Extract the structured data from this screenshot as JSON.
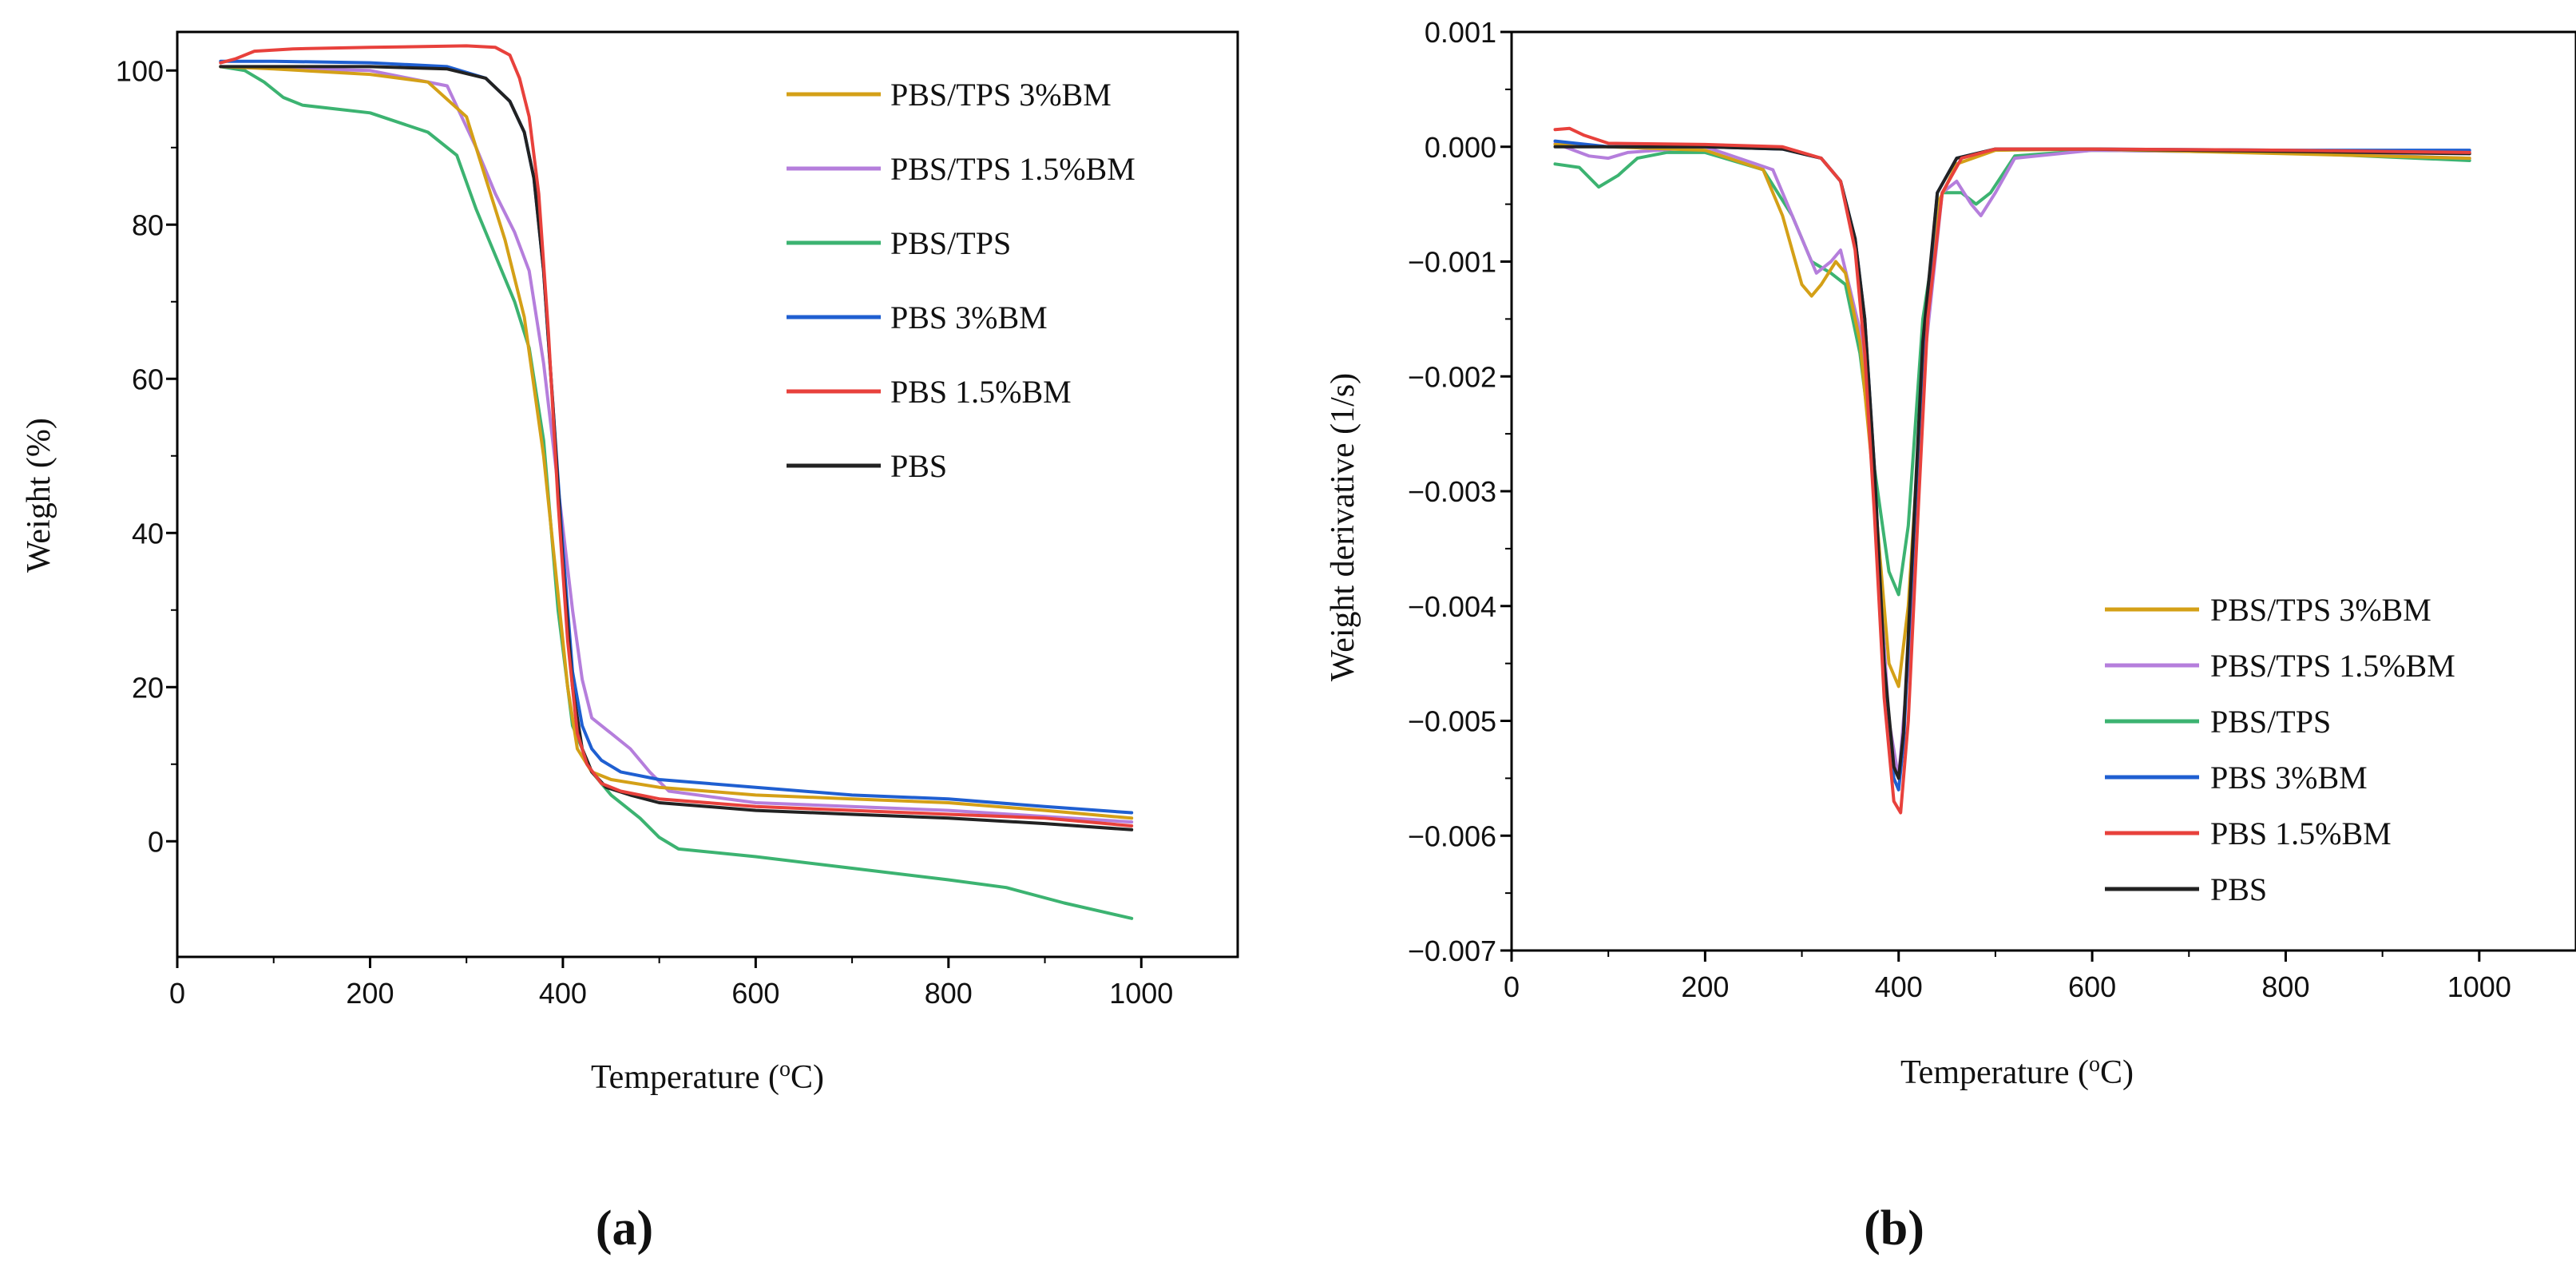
{
  "chart_data": [
    {
      "type": "line",
      "panel_label": "(a)",
      "xlabel": "Temperature (",
      "xlabel_sup": "o",
      "xlabel_tail": "C)",
      "ylabel": "Weight (%)",
      "xlim": [
        0,
        1100
      ],
      "ylim": [
        -15,
        105
      ],
      "xticks": [
        0,
        200,
        400,
        600,
        800,
        1000
      ],
      "yticks": [
        0,
        20,
        40,
        60,
        80,
        100
      ],
      "x_tick_labels": [
        "0",
        "200",
        "400",
        "600",
        "800",
        "1000"
      ],
      "y_tick_labels": [
        "0",
        "20",
        "40",
        "60",
        "80",
        "100"
      ],
      "legend_position": "top-right",
      "series": [
        {
          "name": "PBS/TPS 3%BM",
          "color": "#D4A017",
          "x": [
            45,
            100,
            200,
            260,
            300,
            320,
            340,
            360,
            380,
            395,
            405,
            415,
            430,
            450,
            500,
            600,
            700,
            800,
            900,
            990
          ],
          "y": [
            100.5,
            100.2,
            99.5,
            98.5,
            94,
            86,
            78,
            68,
            50,
            32,
            20,
            12,
            9,
            8,
            7,
            6,
            5.5,
            5,
            4,
            3
          ]
        },
        {
          "name": "PBS/TPS 1.5%BM",
          "color": "#B57EDC",
          "x": [
            45,
            100,
            200,
            280,
            310,
            330,
            350,
            365,
            380,
            395,
            410,
            420,
            430,
            450,
            470,
            490,
            510,
            600,
            800,
            990
          ],
          "y": [
            100.5,
            100.3,
            100,
            98,
            90,
            84,
            79,
            74,
            62,
            46,
            30,
            21,
            16,
            14,
            12,
            9,
            6.5,
            5,
            4,
            2.5
          ]
        },
        {
          "name": "PBS/TPS",
          "color": "#3CB371",
          "x": [
            45,
            70,
            90,
            110,
            130,
            200,
            260,
            290,
            310,
            330,
            350,
            365,
            380,
            395,
            410,
            430,
            450,
            480,
            500,
            520,
            600,
            700,
            800,
            860,
            920,
            990
          ],
          "y": [
            100.5,
            100,
            98.5,
            96.5,
            95.5,
            94.5,
            92,
            89,
            82,
            76,
            70,
            64,
            52,
            30,
            15,
            9,
            6,
            3,
            0.5,
            -1,
            -2,
            -3.5,
            -5,
            -6,
            -8,
            -10
          ]
        },
        {
          "name": "PBS 3%BM",
          "color": "#1F5FD1",
          "x": [
            45,
            100,
            200,
            280,
            320,
            345,
            360,
            370,
            380,
            390,
            400,
            410,
            420,
            430,
            440,
            460,
            500,
            600,
            700,
            800,
            900,
            990
          ],
          "y": [
            101.2,
            101.2,
            101,
            100.5,
            99,
            96,
            92,
            86,
            74,
            56,
            38,
            22,
            15,
            12,
            10.5,
            9,
            8,
            7,
            6,
            5.5,
            4.5,
            3.7
          ]
        },
        {
          "name": "PBS 1.5%BM",
          "color": "#E8413C",
          "x": [
            45,
            60,
            80,
            120,
            200,
            300,
            330,
            345,
            355,
            365,
            375,
            385,
            395,
            405,
            415,
            425,
            440,
            460,
            500,
            600,
            700,
            800,
            900,
            990
          ],
          "y": [
            101,
            101.5,
            102.5,
            102.8,
            103,
            103.2,
            103,
            102,
            99,
            94,
            84,
            66,
            44,
            26,
            14,
            10,
            7.5,
            6.5,
            5.5,
            4.5,
            4,
            3.5,
            3,
            2
          ]
        },
        {
          "name": "PBS",
          "color": "#222222",
          "x": [
            45,
            100,
            200,
            280,
            320,
            345,
            360,
            370,
            380,
            390,
            400,
            410,
            420,
            430,
            445,
            470,
            500,
            600,
            700,
            800,
            900,
            990
          ],
          "y": [
            100.5,
            100.5,
            100.5,
            100.2,
            99,
            96,
            92,
            86,
            74,
            56,
            36,
            20,
            12,
            9,
            7,
            6,
            5,
            4,
            3.5,
            3,
            2.3,
            1.5
          ]
        }
      ]
    },
    {
      "type": "line",
      "panel_label": "(b)",
      "xlabel": "Temperature (",
      "xlabel_sup": "o",
      "xlabel_tail": "C)",
      "ylabel": "Weight derivative (1/s)",
      "xlim": [
        0,
        1100
      ],
      "ylim": [
        -0.007,
        0.001
      ],
      "xticks": [
        0,
        200,
        400,
        600,
        800,
        1000
      ],
      "yticks": [
        0.001,
        0.0,
        -0.001,
        -0.002,
        -0.003,
        -0.004,
        -0.005,
        -0.006,
        -0.007
      ],
      "x_tick_labels": [
        "0",
        "200",
        "400",
        "600",
        "800",
        "1000"
      ],
      "y_tick_labels": [
        "0.001",
        "0.000",
        "−0.001",
        "−0.002",
        "−0.003",
        "−0.004",
        "−0.005",
        "−0.006",
        "−0.007"
      ],
      "legend_position": "bottom-right",
      "series": [
        {
          "name": "PBS/TPS 3%BM",
          "color": "#D4A017",
          "x": [
            45,
            100,
            200,
            260,
            280,
            300,
            310,
            320,
            335,
            345,
            360,
            375,
            390,
            400,
            410,
            425,
            440,
            460,
            500,
            600,
            800,
            990
          ],
          "y": [
            2e-05,
            0.0,
            -3e-05,
            -0.0002,
            -0.0006,
            -0.0012,
            -0.0013,
            -0.0012,
            -0.001,
            -0.0011,
            -0.0017,
            -0.003,
            -0.0045,
            -0.0047,
            -0.004,
            -0.002,
            -0.0005,
            -0.00015,
            -3e-05,
            -2e-05,
            -6e-05,
            -0.0001
          ]
        },
        {
          "name": "PBS/TPS 1.5%BM",
          "color": "#B57EDC",
          "x": [
            45,
            80,
            100,
            120,
            200,
            270,
            295,
            315,
            330,
            340,
            360,
            375,
            390,
            400,
            410,
            425,
            445,
            460,
            475,
            485,
            500,
            520,
            600,
            800,
            990
          ],
          "y": [
            3e-05,
            -8e-05,
            -0.0001,
            -5e-05,
            0.0,
            -0.0002,
            -0.0007,
            -0.0011,
            -0.001,
            -0.0009,
            -0.0016,
            -0.003,
            -0.005,
            -0.0055,
            -0.0045,
            -0.002,
            -0.0004,
            -0.0003,
            -0.0005,
            -0.0006,
            -0.0004,
            -0.0001,
            -3e-05,
            -5e-05,
            -0.0001
          ]
        },
        {
          "name": "PBS/TPS",
          "color": "#3CB371",
          "x": [
            45,
            70,
            90,
            110,
            130,
            160,
            200,
            260,
            290,
            310,
            330,
            345,
            360,
            375,
            390,
            400,
            410,
            425,
            445,
            465,
            480,
            495,
            520,
            600,
            800,
            990
          ],
          "y": [
            -0.00015,
            -0.00018,
            -0.00035,
            -0.00025,
            -0.0001,
            -5e-05,
            -5e-05,
            -0.0002,
            -0.0006,
            -0.001,
            -0.0011,
            -0.0012,
            -0.0018,
            -0.0028,
            -0.0037,
            -0.0039,
            -0.0033,
            -0.0015,
            -0.0004,
            -0.0004,
            -0.0005,
            -0.0004,
            -8e-05,
            -3e-05,
            -5e-05,
            -0.00012
          ]
        },
        {
          "name": "PBS 3%BM",
          "color": "#1F5FD1",
          "x": [
            45,
            100,
            200,
            280,
            320,
            340,
            355,
            365,
            375,
            385,
            395,
            400,
            405,
            415,
            425,
            440,
            460,
            500,
            600,
            800,
            990
          ],
          "y": [
            5e-05,
            0.0,
            0.0,
            -2e-05,
            -0.0001,
            -0.0003,
            -0.0008,
            -0.0015,
            -0.0028,
            -0.0045,
            -0.0055,
            -0.0056,
            -0.0052,
            -0.0035,
            -0.0018,
            -0.0004,
            -0.0001,
            -2e-05,
            -2e-05,
            -3e-05,
            -3e-05
          ]
        },
        {
          "name": "PBS 1.5%BM",
          "color": "#E8413C",
          "x": [
            45,
            60,
            75,
            100,
            200,
            280,
            320,
            340,
            355,
            365,
            375,
            385,
            395,
            402,
            410,
            420,
            430,
            445,
            465,
            500,
            600,
            800,
            990
          ],
          "y": [
            0.00015,
            0.00016,
            0.0001,
            3e-05,
            2e-05,
            0.0,
            -0.0001,
            -0.0003,
            -0.0009,
            -0.0018,
            -0.0032,
            -0.0048,
            -0.0057,
            -0.0058,
            -0.005,
            -0.0032,
            -0.0015,
            -0.0004,
            -0.0001,
            -2e-05,
            -2e-05,
            -3e-05,
            -5e-05
          ]
        },
        {
          "name": "PBS",
          "color": "#222222",
          "x": [
            45,
            100,
            200,
            280,
            320,
            340,
            355,
            365,
            375,
            385,
            395,
            400,
            405,
            415,
            425,
            440,
            460,
            500,
            600,
            800,
            990
          ],
          "y": [
            0.0,
            0.0,
            0.0,
            -2e-05,
            -0.0001,
            -0.0003,
            -0.0008,
            -0.0015,
            -0.0028,
            -0.0045,
            -0.0054,
            -0.0055,
            -0.0051,
            -0.0034,
            -0.0017,
            -0.0004,
            -0.0001,
            -2e-05,
            -2e-05,
            -4e-05,
            -6e-05
          ]
        }
      ]
    }
  ]
}
